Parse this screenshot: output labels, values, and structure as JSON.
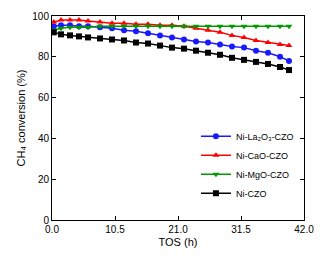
{
  "chart_data": {
    "type": "line",
    "x_label": "TOS (h)",
    "y_label": "CH₄ conversion (%)",
    "x": [
      0.3,
      1.5,
      3,
      4.5,
      6,
      8,
      10,
      12,
      14,
      16,
      18,
      20,
      22,
      24,
      26,
      28,
      30,
      32,
      34,
      36,
      38,
      39.5
    ],
    "series": [
      {
        "name": "Ni-La₂O₃-CZO",
        "color": "#1a1aff",
        "marker": "circle",
        "values": [
          95,
          95.5,
          95.5,
          95,
          95,
          94.5,
          94,
          93,
          92.5,
          91.5,
          90.5,
          89.5,
          88.5,
          87.5,
          87,
          86,
          85,
          84.5,
          83,
          82,
          80,
          78
        ]
      },
      {
        "name": "Ni-CaO-CZO",
        "color": "#ff0000",
        "marker": "triangle-up",
        "values": [
          97,
          98,
          98,
          98,
          97.5,
          97,
          96.5,
          96.5,
          96,
          96,
          95.5,
          95.5,
          95,
          94,
          93,
          92,
          90.5,
          89.5,
          88,
          87,
          86,
          85.5
        ]
      },
      {
        "name": "Ni-MgO-CZO",
        "color": "#009900",
        "marker": "triangle-down",
        "values": [
          93,
          94,
          94.5,
          94.5,
          94.5,
          95,
          95,
          95,
          95,
          95,
          95,
          95,
          95,
          95,
          95,
          95,
          95,
          95,
          95,
          95,
          95,
          95
        ]
      },
      {
        "name": "Ni-CZO",
        "color": "#000000",
        "marker": "square",
        "values": [
          92,
          91,
          90.5,
          90,
          89.5,
          89,
          88.5,
          88,
          87,
          86.5,
          85.5,
          84.5,
          84,
          83,
          82,
          81,
          79.5,
          78.5,
          77.5,
          76.5,
          75,
          73.5
        ]
      }
    ],
    "xlim": [
      0,
      42
    ],
    "xticks": [
      {
        "value": 0,
        "label": "0.0"
      },
      10.5,
      {
        "value": 21,
        "label": "21.0"
      },
      31.5,
      {
        "value": 42,
        "label": "42.0"
      }
    ],
    "ylim": [
      0,
      100
    ],
    "yticks": [
      0,
      20,
      40,
      60,
      80,
      100
    ],
    "grid": false,
    "legend": "lower right"
  }
}
